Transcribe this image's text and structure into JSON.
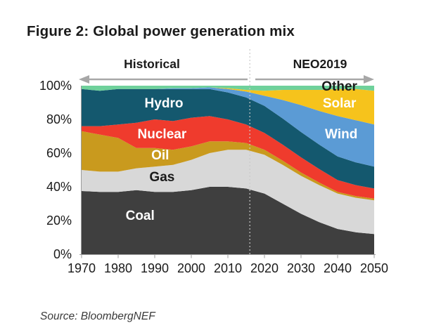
{
  "figure": {
    "title": "Figure 2: Global power generation mix",
    "source": "Source: BloombergNEF",
    "header": {
      "historical_label": "Historical",
      "forecast_label": "NEO2019"
    }
  },
  "chart_data": {
    "type": "area",
    "stacking": "percent",
    "title": "Figure 2: Global power generation mix",
    "xlim": [
      1970,
      2050
    ],
    "ylim": [
      0,
      100
    ],
    "grid": false,
    "legend": "in-plot area labels",
    "divider_year": 2016,
    "x_ticks": [
      {
        "label": "1970",
        "value": 1970
      },
      {
        "label": "1980",
        "value": 1980
      },
      {
        "label": "1990",
        "value": 1990
      },
      {
        "label": "2000",
        "value": 2000
      },
      {
        "label": "2010",
        "value": 2010
      },
      {
        "label": "2020",
        "value": 2020
      },
      {
        "label": "2030",
        "value": 2030
      },
      {
        "label": "2040",
        "value": 2040
      },
      {
        "label": "2050",
        "value": 2050
      }
    ],
    "y_ticks": [
      {
        "label": "0%",
        "value": 0
      },
      {
        "label": "20%",
        "value": 20
      },
      {
        "label": "40%",
        "value": 40
      },
      {
        "label": "60%",
        "value": 60
      },
      {
        "label": "80%",
        "value": 80
      },
      {
        "label": "100%",
        "value": 100
      }
    ],
    "x": [
      1970,
      1975,
      1980,
      1985,
      1990,
      1995,
      2000,
      2005,
      2010,
      2015,
      2020,
      2025,
      2030,
      2035,
      2040,
      2045,
      2050
    ],
    "series": [
      {
        "name": "Coal",
        "color": "#3F3F3F",
        "values": [
          37.5,
          37,
          37,
          38,
          37,
          37,
          38,
          40,
          40,
          39,
          36,
          30,
          24,
          19,
          15,
          13,
          12
        ],
        "label": {
          "text": "Coal",
          "year": 1986,
          "pct": 22.5,
          "color": "#FFFFFF"
        }
      },
      {
        "name": "Gas",
        "color": "#D8D8D8",
        "values": [
          12.5,
          12,
          12,
          13,
          15,
          16,
          18,
          20,
          22,
          23,
          23,
          23,
          22.5,
          22,
          21,
          20.5,
          20
        ],
        "label": {
          "text": "Gas",
          "year": 1992,
          "pct": 45.5,
          "color": "#1A1A1A"
        }
      },
      {
        "name": "Oil",
        "color": "#C99A1E",
        "values": [
          23,
          22,
          20,
          12,
          11,
          9,
          8,
          7,
          5,
          4,
          3,
          2.5,
          2,
          1.5,
          1,
          1,
          1
        ],
        "label": {
          "text": "Oil",
          "year": 1991.5,
          "pct": 58.5,
          "color": "#FFFFFF"
        }
      },
      {
        "name": "Nuclear",
        "color": "#EF3B2D",
        "values": [
          3,
          5,
          8,
          15,
          17,
          17,
          17,
          15,
          13,
          11,
          10,
          9.5,
          9,
          8,
          7,
          6.5,
          6
        ],
        "label": {
          "text": "Nuclear",
          "year": 1992,
          "pct": 71,
          "color": "#FFFFFF"
        }
      },
      {
        "name": "Hydro",
        "color": "#14586E",
        "values": [
          22,
          21,
          21,
          20,
          18,
          19,
          17,
          16,
          16,
          16,
          16,
          15.5,
          15,
          14.5,
          14,
          13.5,
          13
        ],
        "label": {
          "text": "Hydro",
          "year": 1992.5,
          "pct": 89,
          "color": "#FFFFFF"
        }
      },
      {
        "name": "Wind",
        "color": "#5B9BD5",
        "values": [
          0,
          0,
          0,
          0,
          0,
          0.5,
          0.5,
          1,
          2,
          3.5,
          6,
          11,
          16,
          20,
          24,
          25,
          25
        ],
        "label": {
          "text": "Wind",
          "year": 2041,
          "pct": 71,
          "color": "#FFFFFF"
        }
      },
      {
        "name": "Solar",
        "color": "#F6C31C",
        "values": [
          0,
          0,
          0,
          0,
          0,
          0,
          0,
          0,
          0.5,
          1,
          3,
          6,
          9,
          12.5,
          16,
          18.5,
          20
        ],
        "label": {
          "text": "Solar",
          "year": 2040.5,
          "pct": 89,
          "color": "#FFFFFF"
        }
      },
      {
        "name": "Other",
        "color": "#6FD19B",
        "values": [
          2,
          3,
          2,
          2,
          2,
          1.5,
          1.5,
          1,
          1.5,
          2.5,
          3,
          2.5,
          2.5,
          2.5,
          2,
          2,
          3
        ],
        "label": {
          "text": "Other",
          "year": 2040.5,
          "pct": 99.3,
          "color": "#1A1A1A"
        }
      }
    ]
  }
}
